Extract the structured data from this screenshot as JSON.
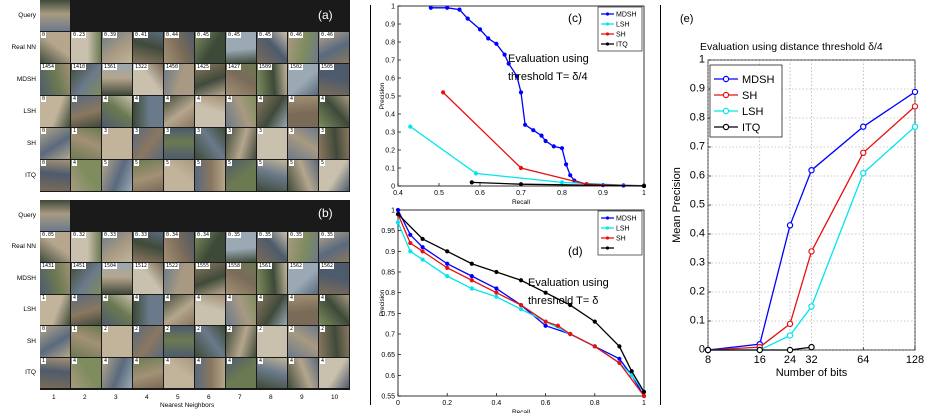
{
  "panel_a": {
    "tag": "(a)",
    "row_labels": [
      "Query",
      "Real NN",
      "MDSH",
      "LSH",
      "SH",
      "ITQ"
    ],
    "real_nn_values": [
      "0",
      "0.23",
      "0.39",
      "0.41",
      "0.44",
      "0.45",
      "0.45",
      "0.45",
      "0.46",
      "0.46"
    ],
    "mdsh_values": [
      "1454",
      "1410",
      "1361",
      "1322",
      "1450",
      "1425",
      "1427",
      "1509",
      "1502",
      "1505"
    ],
    "lsh_values": [
      "0",
      "4",
      "4",
      "4",
      "4",
      "4",
      "4",
      "4",
      "4",
      "4"
    ],
    "sh_values": [
      "0",
      "1",
      "3",
      "3",
      "3",
      "3",
      "3",
      "3",
      "3",
      "3"
    ],
    "itq_values": [
      "0",
      "4",
      "5",
      "5",
      "5",
      "5",
      "5",
      "5",
      "5",
      "5"
    ]
  },
  "panel_b": {
    "tag": "(b)",
    "row_labels": [
      "Query",
      "Real NN",
      "MDSH",
      "LSH",
      "SH",
      "ITQ"
    ],
    "real_nn_values": [
      "0.05",
      "0.32",
      "0.33",
      "0.33",
      "0.34",
      "0.34",
      "0.35",
      "0.35",
      "0.35",
      "0.35"
    ],
    "mdsh_values": [
      "1431",
      "1451",
      "1504",
      "1512",
      "1522",
      "1555",
      "1558",
      "1561",
      "1562",
      "1562"
    ],
    "lsh_values": [
      "1",
      "4",
      "4",
      "4",
      "4",
      "4",
      "4",
      "4",
      "4",
      "4"
    ],
    "sh_values": [
      "0",
      "1",
      "2",
      "2",
      "2",
      "2",
      "2",
      "2",
      "2",
      "2"
    ],
    "itq_values": [
      "1",
      "4",
      "4",
      "4",
      "4",
      "4",
      "4",
      "4",
      "4",
      "4"
    ],
    "column_numbers": [
      "1",
      "2",
      "3",
      "4",
      "5",
      "6",
      "7",
      "8",
      "9",
      "10"
    ],
    "x_caption": "Nearest Neighbors"
  },
  "chart_data": [
    {
      "id": "c",
      "type": "line",
      "tag": "(c)",
      "annotation_line1": "Evaluation using",
      "annotation_line2": "threshold T= δ/4",
      "xlabel": "Recall",
      "ylabel": "Precision",
      "xlim": [
        0.4,
        1.0
      ],
      "ylim": [
        0,
        1
      ],
      "xticks": [
        "0.4",
        "0.5",
        "0.6",
        "0.7",
        "0.8",
        "0.9",
        "1"
      ],
      "yticks": [
        "0",
        "0.1",
        "0.2",
        "0.3",
        "0.4",
        "0.5",
        "0.6",
        "0.7",
        "0.8",
        "0.9",
        "1"
      ],
      "series": [
        {
          "name": "MDSH",
          "color": "#0000ff",
          "points": [
            [
              0.48,
              0.99
            ],
            [
              0.52,
              0.99
            ],
            [
              0.55,
              0.98
            ],
            [
              0.57,
              0.93
            ],
            [
              0.6,
              0.87
            ],
            [
              0.62,
              0.82
            ],
            [
              0.64,
              0.79
            ],
            [
              0.66,
              0.73
            ],
            [
              0.67,
              0.68
            ],
            [
              0.69,
              0.61
            ],
            [
              0.7,
              0.52
            ],
            [
              0.71,
              0.34
            ],
            [
              0.73,
              0.31
            ],
            [
              0.75,
              0.28
            ],
            [
              0.76,
              0.25
            ],
            [
              0.78,
              0.22
            ],
            [
              0.8,
              0.21
            ],
            [
              0.81,
              0.12
            ],
            [
              0.82,
              0.06
            ],
            [
              0.83,
              0.03
            ],
            [
              0.86,
              0.01
            ],
            [
              0.9,
              0.005
            ],
            [
              0.95,
              0.003
            ],
            [
              1.0,
              0.002
            ]
          ]
        },
        {
          "name": "LSH",
          "color": "#00e5ee",
          "points": [
            [
              0.43,
              0.33
            ],
            [
              0.59,
              0.07
            ],
            [
              0.8,
              0.02
            ],
            [
              1.0,
              0.0
            ]
          ]
        },
        {
          "name": "SH",
          "color": "#e81010",
          "points": [
            [
              0.51,
              0.52
            ],
            [
              0.7,
              0.1
            ],
            [
              0.86,
              0.01
            ],
            [
              1.0,
              0.0
            ]
          ]
        },
        {
          "name": "ITQ",
          "color": "#000000",
          "points": [
            [
              0.58,
              0.02
            ],
            [
              0.7,
              0.01
            ],
            [
              1.0,
              0.0
            ]
          ]
        }
      ]
    },
    {
      "id": "d",
      "type": "line",
      "tag": "(d)",
      "annotation_line1": "Evaluation using",
      "annotation_line2": "threshold T= δ",
      "xlabel": "Recall",
      "ylabel": "Precision",
      "xlim": [
        0,
        1.0
      ],
      "ylim": [
        0.55,
        1.0
      ],
      "xticks": [
        "0",
        "0.2",
        "0.4",
        "0.6",
        "0.8",
        "1"
      ],
      "yticks": [
        "0.55",
        "0.6",
        "0.65",
        "0.7",
        "0.75",
        "0.8",
        "0.85",
        "0.9",
        "0.95",
        "1"
      ],
      "legend": [
        "MDSH",
        "LSH",
        "SH"
      ],
      "series": [
        {
          "name": "MDSH",
          "color": "#0000ff",
          "points": [
            [
              0.0,
              1.0
            ],
            [
              0.05,
              0.94
            ],
            [
              0.1,
              0.91
            ],
            [
              0.2,
              0.87
            ],
            [
              0.3,
              0.84
            ],
            [
              0.4,
              0.81
            ],
            [
              0.5,
              0.77
            ],
            [
              0.6,
              0.72
            ],
            [
              0.7,
              0.7
            ],
            [
              0.8,
              0.67
            ],
            [
              0.9,
              0.64
            ],
            [
              0.95,
              0.6
            ],
            [
              1.0,
              0.55
            ]
          ]
        },
        {
          "name": "LSH",
          "color": "#00e5ee",
          "points": [
            [
              0.0,
              0.97
            ],
            [
              0.05,
              0.9
            ],
            [
              0.1,
              0.88
            ],
            [
              0.2,
              0.84
            ],
            [
              0.3,
              0.81
            ],
            [
              0.4,
              0.79
            ],
            [
              0.5,
              0.76
            ],
            [
              0.6,
              0.73
            ],
            [
              0.7,
              0.7
            ],
            [
              0.8,
              0.67
            ],
            [
              0.9,
              0.63
            ],
            [
              0.95,
              0.6
            ],
            [
              1.0,
              0.56
            ]
          ]
        },
        {
          "name": "SH",
          "color": "#e81010",
          "points": [
            [
              0.0,
              0.99
            ],
            [
              0.05,
              0.92
            ],
            [
              0.1,
              0.9
            ],
            [
              0.2,
              0.86
            ],
            [
              0.3,
              0.83
            ],
            [
              0.4,
              0.8
            ],
            [
              0.5,
              0.77
            ],
            [
              0.6,
              0.73
            ],
            [
              0.65,
              0.72
            ],
            [
              0.7,
              0.7
            ],
            [
              0.8,
              0.67
            ],
            [
              0.9,
              0.63
            ],
            [
              1.0,
              0.55
            ]
          ]
        },
        {
          "name": "",
          "color": "#000000",
          "points": [
            [
              0.0,
              0.99
            ],
            [
              0.1,
              0.93
            ],
            [
              0.2,
              0.9
            ],
            [
              0.3,
              0.87
            ],
            [
              0.4,
              0.85
            ],
            [
              0.5,
              0.83
            ],
            [
              0.6,
              0.8
            ],
            [
              0.7,
              0.77
            ],
            [
              0.8,
              0.73
            ],
            [
              0.9,
              0.67
            ],
            [
              0.95,
              0.61
            ],
            [
              1.0,
              0.56
            ]
          ]
        }
      ]
    },
    {
      "id": "e",
      "type": "line",
      "tag": "(e)",
      "title": "Evaluation using distance threshold δ/4",
      "xlabel": "Number of bits",
      "ylabel": "Mean Precision",
      "xlim": [
        8,
        128
      ],
      "ylim": [
        0,
        1.0
      ],
      "x_scale": "log2",
      "xticks": [
        "8",
        "16",
        "24",
        "32",
        "64",
        "128"
      ],
      "yticks": [
        "0",
        "0.1",
        "0.2",
        "0.3",
        "0.4",
        "0.5",
        "0.6",
        "0.7",
        "0.8",
        "0.9",
        "1"
      ],
      "grid": true,
      "legend_position": "top-left",
      "series": [
        {
          "name": "MDSH",
          "color": "#0000ff",
          "points": [
            [
              8,
              0.0
            ],
            [
              16,
              0.02
            ],
            [
              24,
              0.43
            ],
            [
              32,
              0.62
            ],
            [
              64,
              0.77
            ],
            [
              128,
              0.89
            ]
          ]
        },
        {
          "name": "SH",
          "color": "#e81010",
          "points": [
            [
              8,
              0.0
            ],
            [
              16,
              0.01
            ],
            [
              24,
              0.09
            ],
            [
              32,
              0.34
            ],
            [
              64,
              0.68
            ],
            [
              128,
              0.84
            ]
          ]
        },
        {
          "name": "LSH",
          "color": "#00e5ee",
          "points": [
            [
              8,
              0.0
            ],
            [
              16,
              0.0
            ],
            [
              24,
              0.05
            ],
            [
              32,
              0.15
            ],
            [
              64,
              0.61
            ],
            [
              128,
              0.77
            ]
          ]
        },
        {
          "name": "ITQ",
          "color": "#000000",
          "points": [
            [
              8,
              0.0
            ],
            [
              16,
              0.0
            ],
            [
              24,
              0.0
            ],
            [
              32,
              0.01
            ]
          ]
        }
      ]
    }
  ]
}
